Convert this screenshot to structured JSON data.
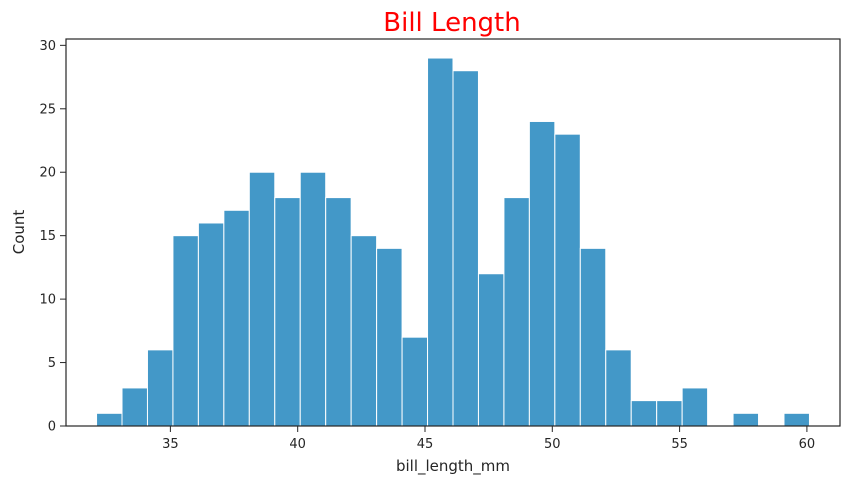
{
  "chart_data": {
    "type": "bar",
    "title": "Bill Length",
    "xlabel": "bill_length_mm",
    "ylabel": "Count",
    "xlim": [
      30.9,
      61.3
    ],
    "ylim": [
      0,
      30.5
    ],
    "xticks": [
      35,
      40,
      45,
      50,
      55,
      60
    ],
    "yticks": [
      0,
      5,
      10,
      15,
      20,
      25,
      30
    ],
    "grid": false,
    "bin_start": 32.1,
    "bin_width": 1.0,
    "values": [
      1,
      3,
      6,
      15,
      16,
      17,
      20,
      18,
      20,
      18,
      15,
      14,
      7,
      29,
      28,
      12,
      18,
      24,
      23,
      14,
      6,
      2,
      2,
      3,
      0,
      1,
      0,
      1
    ],
    "bar_color": "#4398c8"
  }
}
